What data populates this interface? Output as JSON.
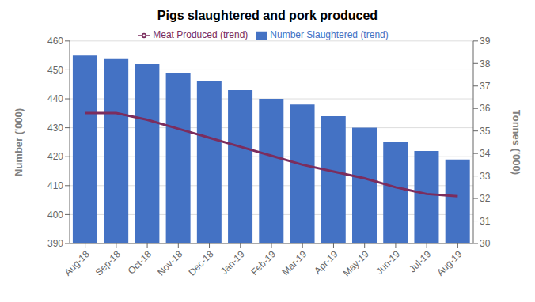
{
  "chart_data": {
    "type": "bar",
    "title": "Pigs slaughtered and pork produced",
    "categories": [
      "Aug-18",
      "Sep-18",
      "Oct-18",
      "Nov-18",
      "Dec-18",
      "Jan-19",
      "Feb-19",
      "Mar-19",
      "Apr-19",
      "May-19",
      "Jun-19",
      "Jul-19",
      "Aug-19"
    ],
    "series": [
      {
        "name": "Number Slaughtered (trend)",
        "type": "bar",
        "color": "#4472C4",
        "values": [
          455,
          454,
          452,
          449,
          446,
          443,
          440,
          438,
          434,
          430,
          425,
          422,
          419
        ]
      },
      {
        "name": "Meat Produced (trend)",
        "type": "line",
        "color": "#7B2D5E",
        "axis": "y2",
        "values": [
          35.8,
          35.8,
          35.5,
          35.1,
          34.7,
          34.3,
          33.9,
          33.5,
          33.2,
          32.9,
          32.5,
          32.2,
          32.1
        ]
      }
    ],
    "ylim": [
      390,
      460
    ],
    "yticks": [
      390,
      400,
      410,
      420,
      430,
      440,
      450,
      460
    ],
    "y2lim": [
      30,
      39
    ],
    "y2ticks": [
      30,
      31,
      32,
      33,
      34,
      35,
      36,
      37,
      38,
      39
    ],
    "ylabel": "Number ('000)",
    "y2label": "Tonnes ('000)",
    "grid": true,
    "legend": "top"
  }
}
